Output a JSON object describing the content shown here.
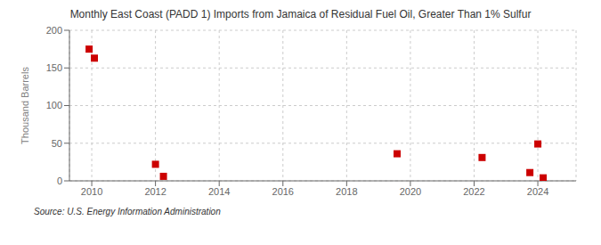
{
  "chart_data": {
    "type": "scatter",
    "title": "Monthly East Coast (PADD 1) Imports from Jamaica of Residual Fuel Oil, Greater Than 1% Sulfur",
    "y_label": "Thousand Barrels",
    "annotations": [
      "Source: U.S. Energy Information Administration"
    ],
    "x": [
      2009.917,
      2010.083,
      2012.0,
      2012.25,
      2019.583,
      2022.25,
      2023.75,
      2024.0,
      2024.167
    ],
    "values": [
      175,
      163,
      22,
      6,
      36,
      31,
      11,
      49,
      4
    ],
    "color": "#cc0000",
    "marker": "square",
    "xlim": [
      2009.3,
      2025.2
    ],
    "xticks": [
      2010,
      2012,
      2014,
      2016,
      2018,
      2020,
      2022,
      2024
    ],
    "ylim": [
      0,
      200
    ],
    "yticks": [
      0,
      50,
      100,
      150,
      200
    ],
    "grid": true
  }
}
